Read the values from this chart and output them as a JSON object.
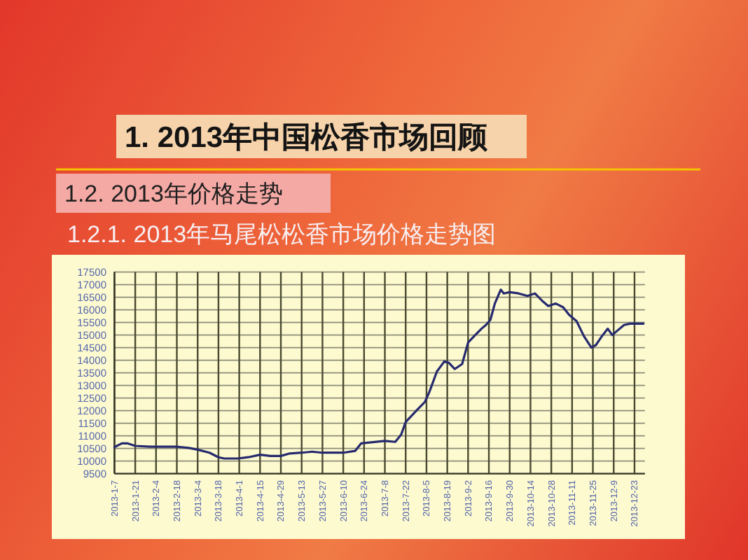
{
  "chart_data": {
    "type": "line",
    "title": "1.2.1. 2013年马尾松松香市场价格走势图",
    "annotations": [
      "1. 2013年中国松香市场回顾",
      "1.2. 2013年价格走势"
    ],
    "x": [
      "2013-01-07",
      "2013-01-12",
      "2013-01-16",
      "2013-01-21",
      "2013-01-31",
      "2013-02-18",
      "2013-02-26",
      "2013-03-04",
      "2013-03-12",
      "2013-03-18",
      "2013-03-22",
      "2013-03-31",
      "2013-04-07",
      "2013-04-15",
      "2013-04-22",
      "2013-04-29",
      "2013-05-05",
      "2013-05-13",
      "2013-05-20",
      "2013-05-27",
      "2013-06-10",
      "2013-06-18",
      "2013-06-22",
      "2013-06-30",
      "2013-07-08",
      "2013-07-15",
      "2013-07-19",
      "2013-07-22",
      "2013-07-26",
      "2013-07-30",
      "2013-08-04",
      "2013-08-07",
      "2013-08-12",
      "2013-08-17",
      "2013-08-20",
      "2013-08-24",
      "2013-08-29",
      "2013-09-02",
      "2013-09-06",
      "2013-09-11",
      "2013-09-14",
      "2013-09-17",
      "2013-09-20",
      "2013-09-24",
      "2013-09-26",
      "2013-09-30",
      "2013-10-06",
      "2013-10-12",
      "2013-10-17",
      "2013-10-22",
      "2013-10-26",
      "2013-10-31",
      "2013-11-05",
      "2013-11-09",
      "2013-11-14",
      "2013-11-19",
      "2013-11-24",
      "2013-11-27",
      "2013-12-01",
      "2013-12-05",
      "2013-12-08",
      "2013-12-12",
      "2013-12-16",
      "2013-12-20",
      "2013-12-29"
    ],
    "values": [
      10550,
      10700,
      10700,
      10600,
      10570,
      10570,
      10520,
      10450,
      10330,
      10150,
      10100,
      10100,
      10150,
      10250,
      10200,
      10200,
      10300,
      10330,
      10370,
      10330,
      10330,
      10400,
      10700,
      10750,
      10800,
      10760,
      11050,
      11550,
      11800,
      12050,
      12350,
      12750,
      13550,
      13950,
      13900,
      13650,
      13850,
      14700,
      14950,
      15250,
      15400,
      15600,
      16250,
      16800,
      16650,
      16700,
      16650,
      16550,
      16650,
      16350,
      16150,
      16250,
      16100,
      15800,
      15550,
      14950,
      14500,
      14600,
      14950,
      15250,
      15000,
      15200,
      15400,
      15450,
      15450
    ],
    "color": "#262a6e",
    "xlim": [
      "2013-01-07",
      "2013-12-30"
    ],
    "xticks": [
      {
        "value": "2013-01-07",
        "label": "2013-1-7"
      },
      {
        "value": "2013-01-21",
        "label": "2013-1-21"
      },
      {
        "value": "2013-02-04",
        "label": "2013-2-4"
      },
      {
        "value": "2013-02-18",
        "label": "2013-2-18"
      },
      {
        "value": "2013-03-04",
        "label": "2013-3-4"
      },
      {
        "value": "2013-03-18",
        "label": "2013-3-18"
      },
      {
        "value": "2013-04-01",
        "label": "2013-4-1"
      },
      {
        "value": "2013-04-15",
        "label": "2013-4-15"
      },
      {
        "value": "2013-04-29",
        "label": "2013-4-29"
      },
      {
        "value": "2013-05-13",
        "label": "2013-5-13"
      },
      {
        "value": "2013-05-27",
        "label": "2013-5-27"
      },
      {
        "value": "2013-06-10",
        "label": "2013-6-10"
      },
      {
        "value": "2013-06-24",
        "label": "2013-6-24"
      },
      {
        "value": "2013-07-08",
        "label": "2013-7-8"
      },
      {
        "value": "2013-07-22",
        "label": "2013-7-22"
      },
      {
        "value": "2013-08-05",
        "label": "2013-8-5"
      },
      {
        "value": "2013-08-19",
        "label": "2013-8-19"
      },
      {
        "value": "2013-09-02",
        "label": "2013-9-2"
      },
      {
        "value": "2013-09-16",
        "label": "2013-9-16"
      },
      {
        "value": "2013-09-30",
        "label": "2013-9-30"
      },
      {
        "value": "2013-10-14",
        "label": "2013-10-14"
      },
      {
        "value": "2013-10-28",
        "label": "2013-10-28"
      },
      {
        "value": "2013-11-11",
        "label": "2013-11-11"
      },
      {
        "value": "2013-11-25",
        "label": "2013-11-25"
      },
      {
        "value": "2013-12-09",
        "label": "2013-12-9"
      },
      {
        "value": "2013-12-23",
        "label": "2013-12-23"
      }
    ],
    "ylim": [
      9500,
      17500
    ],
    "yticks": [
      9500,
      10000,
      10500,
      11000,
      11500,
      12000,
      12500,
      13000,
      13500,
      14000,
      14500,
      15000,
      15500,
      16000,
      16500,
      17000,
      17500
    ],
    "grid": true
  }
}
